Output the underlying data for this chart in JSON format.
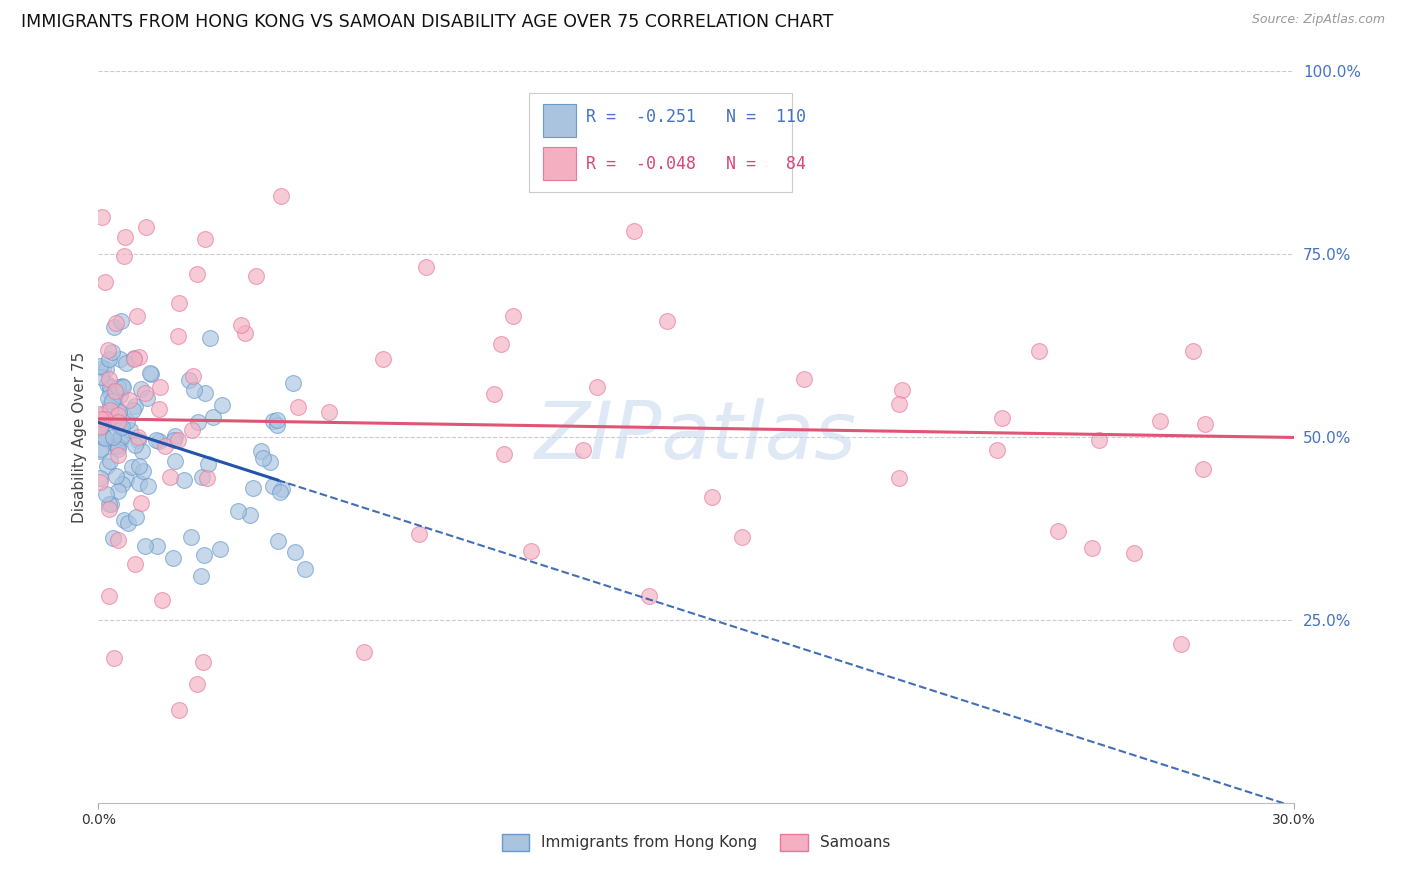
{
  "title": "IMMIGRANTS FROM HONG KONG VS SAMOAN DISABILITY AGE OVER 75 CORRELATION CHART",
  "source": "Source: ZipAtlas.com",
  "ylabel": "Disability Age Over 75",
  "xlim": [
    0.0,
    30.0
  ],
  "ylim": [
    0.0,
    100.0
  ],
  "legend_hk_r": "-0.251",
  "legend_hk_n": "110",
  "legend_sam_r": "-0.048",
  "legend_sam_n": "84",
  "hk_color": "#aac4e0",
  "hk_edge_color": "#6699cc",
  "sam_color": "#f4afc0",
  "sam_edge_color": "#e878a0",
  "hk_line_color": "#2255aa",
  "sam_line_color": "#e05575",
  "background_color": "#ffffff",
  "grid_color": "#cccccc",
  "title_fontsize": 12.5,
  "right_tick_color": "#4472c4",
  "watermark": "ZIPatlas",
  "hk_trend_intercept": 52.0,
  "hk_trend_slope": -1.75,
  "hk_solid_end": 4.5,
  "sam_trend_intercept": 52.5,
  "sam_trend_slope": -0.085
}
